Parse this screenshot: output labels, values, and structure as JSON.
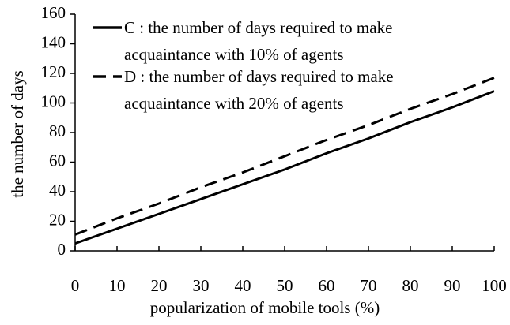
{
  "chart_data": {
    "type": "line",
    "x_label": "popularization of mobile tools (%)",
    "y_label": "the number of days",
    "x": [
      0,
      10,
      20,
      30,
      40,
      50,
      60,
      70,
      80,
      90,
      100
    ],
    "series": [
      {
        "name": "C : the number of days required to make acquaintance with 10% of agents",
        "color": "#000000",
        "dash": "solid",
        "values": [
          5,
          15,
          25,
          35,
          45,
          55,
          66,
          76,
          87,
          97,
          108
        ]
      },
      {
        "name": "D : the number of days required to make acquaintance with 20% of agents",
        "color": "#000000",
        "dash": "dashed",
        "values": [
          11,
          22,
          32,
          43,
          53,
          64,
          75,
          85,
          96,
          106,
          117
        ]
      }
    ],
    "xlim": [
      0,
      100
    ],
    "xticks": [
      0,
      10,
      20,
      30,
      40,
      50,
      60,
      70,
      80,
      90,
      100
    ],
    "ylim": [
      0,
      160
    ],
    "yticks": [
      0,
      20,
      40,
      60,
      80,
      100,
      120,
      140,
      160
    ],
    "grid": false,
    "legend": "upper left"
  }
}
